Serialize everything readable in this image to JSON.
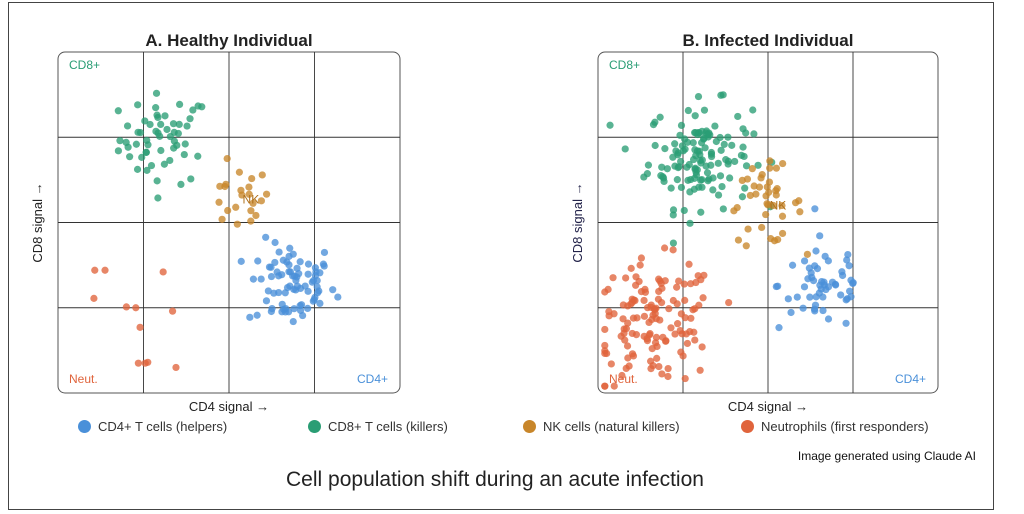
{
  "title": "Cell population shift during an acute infection",
  "credit": "Image generated using Claude AI",
  "colors": {
    "cd4": "#4a90d9",
    "cd8": "#2a9d74",
    "nk": "#c8862a",
    "neut": "#e0643c"
  },
  "chart_data": [
    {
      "type": "scatter",
      "title": "A. Healthy Individual",
      "xlabel": "CD4 signal →",
      "ylabel": "CD8 signal →",
      "xlim": [
        0,
        4
      ],
      "ylim": [
        0,
        4
      ],
      "grid": true,
      "corner_labels": {
        "cd8": "CD8+",
        "cd4": "CD4+",
        "neut": "Neut.",
        "nk": "NK"
      },
      "series": [
        {
          "name": "cd8",
          "cluster": {
            "center": [
              1.25,
              2.98
            ],
            "spread": 0.33,
            "count": 55
          }
        },
        {
          "name": "nk",
          "cluster": {
            "center": [
              2.1,
              2.27
            ],
            "spread": 0.24,
            "count": 22
          }
        },
        {
          "name": "cd4",
          "cluster": {
            "center": [
              2.73,
              1.27
            ],
            "spread": 0.32,
            "count": 80
          }
        },
        {
          "name": "neut",
          "points": [
            [
              0.43,
              1.44
            ],
            [
              0.55,
              1.44
            ],
            [
              1.23,
              1.42
            ],
            [
              0.42,
              1.11
            ],
            [
              0.8,
              1.01
            ],
            [
              0.91,
              1.0
            ],
            [
              1.34,
              0.96
            ],
            [
              0.96,
              0.77
            ],
            [
              0.94,
              0.35
            ],
            [
              1.02,
              0.35
            ],
            [
              1.05,
              0.36
            ],
            [
              1.38,
              0.3
            ]
          ]
        }
      ]
    },
    {
      "type": "scatter",
      "title": "B. Infected Individual",
      "xlabel": "CD4 signal →",
      "ylabel": "CD8 signal →",
      "xlim": [
        0,
        4
      ],
      "ylim": [
        0,
        4
      ],
      "grid": true,
      "corner_labels": {
        "cd8": "CD8+",
        "cd4": "CD4+",
        "neut": "Neut.",
        "nk": "NK"
      },
      "series": [
        {
          "name": "cd8",
          "cluster": {
            "center": [
              1.2,
              2.79
            ],
            "spread": 0.38,
            "count": 130
          }
        },
        {
          "name": "nk",
          "cluster": {
            "center": [
              1.96,
              2.2
            ],
            "spread": 0.28,
            "count": 40
          }
        },
        {
          "name": "cd4",
          "cluster": {
            "center": [
              2.67,
              1.27
            ],
            "spread": 0.34,
            "count": 55
          }
        },
        {
          "name": "neut",
          "cluster": {
            "center": [
              0.67,
              0.82
            ],
            "spread": 0.45,
            "count": 130
          }
        }
      ]
    }
  ],
  "legend": [
    {
      "key": "cd4",
      "label": "CD4+ T cells (helpers)"
    },
    {
      "key": "cd8",
      "label": "CD8+ T cells (killers)"
    },
    {
      "key": "nk",
      "label": "NK cells (natural killers)"
    },
    {
      "key": "neut",
      "label": "Neutrophils (first responders)"
    }
  ]
}
